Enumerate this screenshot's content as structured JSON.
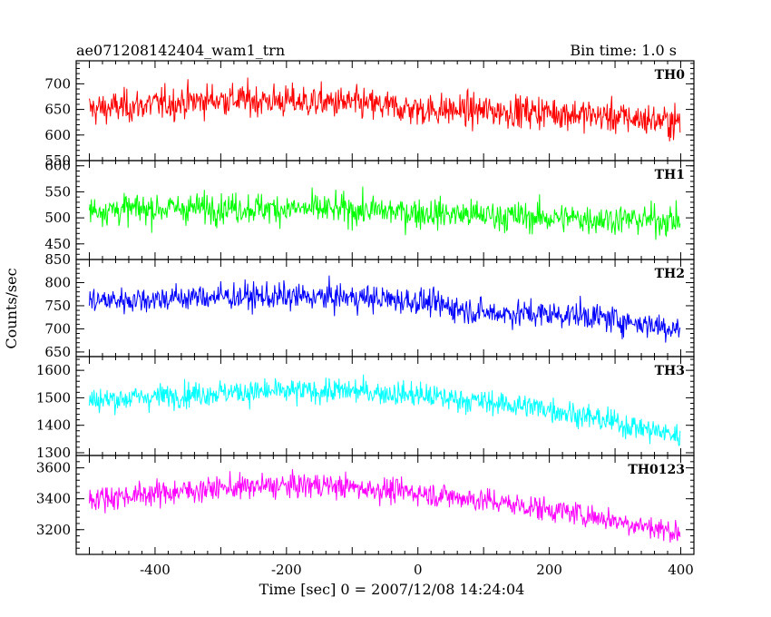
{
  "header": {
    "title": "ae071208142404_wam1_trn",
    "bin_time": "Bin time: 1.0 s"
  },
  "chart_data": {
    "type": "line",
    "ylabel": "Counts/sec",
    "xlabel": "Time [sec] 0 = 2007/12/08 14:24:04",
    "xlim": [
      -520,
      420
    ],
    "x_ticks": [
      -400,
      -200,
      0,
      200,
      400
    ],
    "x_range": [
      -500,
      399
    ],
    "panels": [
      {
        "name": "TH0",
        "color": "#ff0000",
        "ylim": [
          550,
          745
        ],
        "yticks": [
          550,
          600,
          650,
          700
        ],
        "trend": [
          {
            "x": -500,
            "y": 650
          },
          {
            "x": -300,
            "y": 670
          },
          {
            "x": -100,
            "y": 662
          },
          {
            "x": 0,
            "y": 650
          },
          {
            "x": 200,
            "y": 645
          },
          {
            "x": 399,
            "y": 625
          }
        ],
        "noise": 60
      },
      {
        "name": "TH1",
        "color": "#00ff00",
        "ylim": [
          420,
          610
        ],
        "yticks": [
          450,
          500,
          550,
          600
        ],
        "trend": [
          {
            "x": -500,
            "y": 515
          },
          {
            "x": -300,
            "y": 520
          },
          {
            "x": -100,
            "y": 515
          },
          {
            "x": 0,
            "y": 510
          },
          {
            "x": 200,
            "y": 500
          },
          {
            "x": 399,
            "y": 495
          }
        ],
        "noise": 55
      },
      {
        "name": "TH2",
        "color": "#0000ff",
        "ylim": [
          640,
          850
        ],
        "yticks": [
          650,
          700,
          750,
          800,
          850
        ],
        "trend": [
          {
            "x": -500,
            "y": 760
          },
          {
            "x": -300,
            "y": 770
          },
          {
            "x": -100,
            "y": 768
          },
          {
            "x": 0,
            "y": 760
          },
          {
            "x": 100,
            "y": 735
          },
          {
            "x": 250,
            "y": 730
          },
          {
            "x": 399,
            "y": 700
          }
        ],
        "noise": 55
      },
      {
        "name": "TH3",
        "color": "#00ffff",
        "ylim": [
          1290,
          1650
        ],
        "yticks": [
          1300,
          1400,
          1500,
          1600
        ],
        "trend": [
          {
            "x": -500,
            "y": 1490
          },
          {
            "x": -300,
            "y": 1520
          },
          {
            "x": -100,
            "y": 1525
          },
          {
            "x": 0,
            "y": 1510
          },
          {
            "x": 200,
            "y": 1460
          },
          {
            "x": 399,
            "y": 1360
          }
        ],
        "noise": 85
      },
      {
        "name": "TH0123",
        "color": "#ff00ff",
        "ylim": [
          3040,
          3680
        ],
        "yticks": [
          3200,
          3400,
          3600
        ],
        "trend": [
          {
            "x": -500,
            "y": 3400
          },
          {
            "x": -300,
            "y": 3470
          },
          {
            "x": -150,
            "y": 3490
          },
          {
            "x": 0,
            "y": 3440
          },
          {
            "x": 100,
            "y": 3390
          },
          {
            "x": 250,
            "y": 3300
          },
          {
            "x": 399,
            "y": 3180
          }
        ],
        "noise": 150
      }
    ]
  }
}
